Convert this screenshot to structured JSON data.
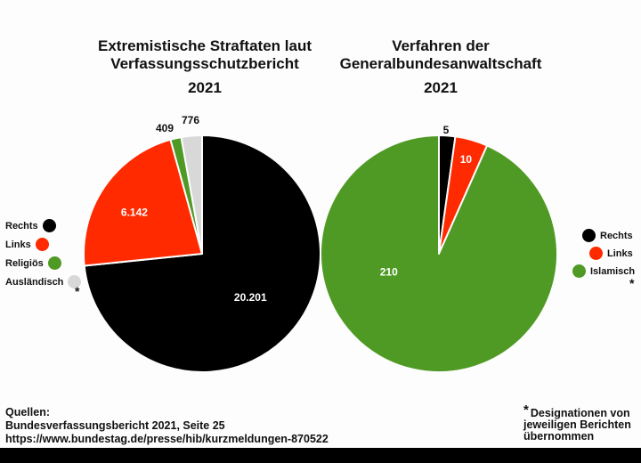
{
  "chart_data": [
    {
      "type": "pie",
      "title": "Extremistische Straftaten laut Verfassungsschutzbericht",
      "title_lines": [
        "Extremistische Straftaten laut",
        "Verfassungsschutzbericht"
      ],
      "subtitle": "2021",
      "categories": [
        "Rechts",
        "Links",
        "Religiös",
        "Ausländisch"
      ],
      "values": [
        20201,
        6142,
        409,
        776
      ],
      "labels": [
        "20.201",
        "6.142",
        "409",
        "776"
      ],
      "colors": [
        "#000000",
        "#ff2a00",
        "#4f9a25",
        "#d8d8d8"
      ],
      "legend_placement": "left",
      "legend_note": "*"
    },
    {
      "type": "pie",
      "title": "Verfahren der Generalbundesanwaltschaft",
      "title_lines": [
        "Verfahren der",
        "Generalbundesanwaltschaft"
      ],
      "subtitle": "2021",
      "categories": [
        "Rechts",
        "Links",
        "Islamisch"
      ],
      "values": [
        5,
        10,
        210
      ],
      "labels": [
        "5",
        "10",
        "210"
      ],
      "colors": [
        "#000000",
        "#ff2a00",
        "#4f9a25"
      ],
      "legend_placement": "right",
      "legend_note": "*"
    }
  ],
  "sources": {
    "heading": "Quellen:",
    "line1": "Bundesverfassungsbericht 2021, Seite 25",
    "line2": "https://www.bundestag.de/presse/hib/kurzmeldungen-870522"
  },
  "note": {
    "star": "*",
    "line1": "Designationen von",
    "line2": "jeweiligen Berichten",
    "line3": "übernommen"
  }
}
